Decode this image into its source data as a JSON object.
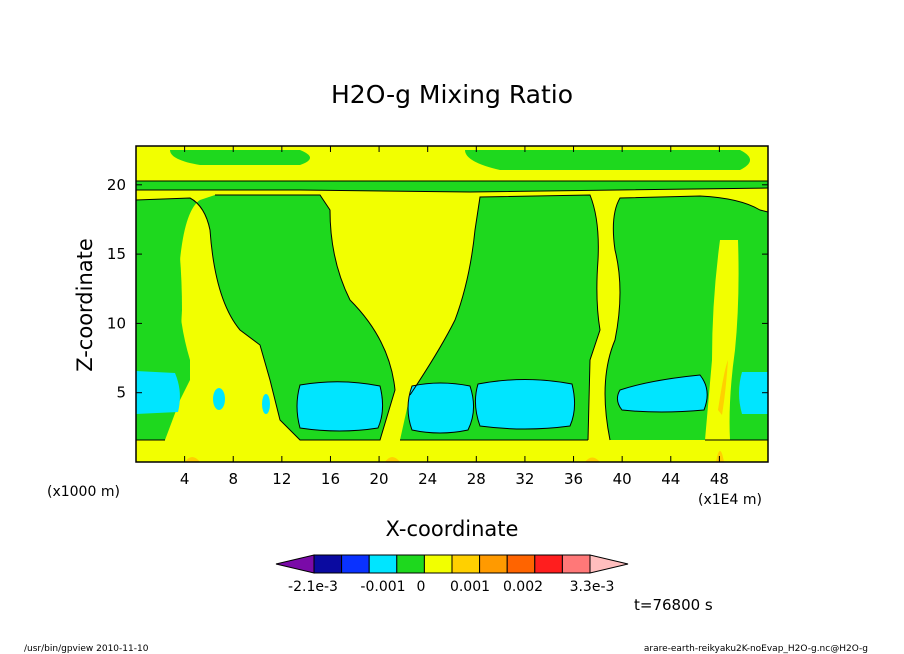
{
  "chart_data": {
    "type": "heatmap",
    "title": "H2O-g Mixing Ratio",
    "xlabel": "X-coordinate",
    "ylabel": "Z-coordinate",
    "x_unit_left": "(x1000 m)",
    "x_unit_right": "(x1E4 m)",
    "xlim": [
      0,
      52
    ],
    "ylim": [
      0,
      22.8
    ],
    "x_ticks": [
      4,
      8,
      12,
      16,
      20,
      24,
      28,
      32,
      36,
      40,
      44,
      48
    ],
    "y_ticks": [
      5,
      10,
      15,
      20
    ],
    "time_label": "t=76800 s",
    "colorbar": {
      "colors": [
        "#7a0aa8",
        "#0a0aa0",
        "#0a32ff",
        "#00e5ff",
        "#1ed81e",
        "#f2ff00",
        "#ffd000",
        "#ff9a00",
        "#ff6400",
        "#ff1e1e",
        "#ff7878",
        "#ffbebe"
      ],
      "labels": [
        "-2.1e-3",
        "-0.001",
        "0",
        "0.001",
        "0.002",
        "3.3e-3"
      ]
    },
    "level_colors": {
      "high_cyan": "#00e5ff",
      "mid_green": "#1ed81e",
      "low_yellow": "#f2ff00",
      "lowest_orange": "#ffd000"
    }
  },
  "footer": {
    "left": "/usr/bin/gpview   2010-11-10",
    "right": "arare-earth-reikyaku2K-noEvap_H2O-g.nc@H2O-g"
  }
}
